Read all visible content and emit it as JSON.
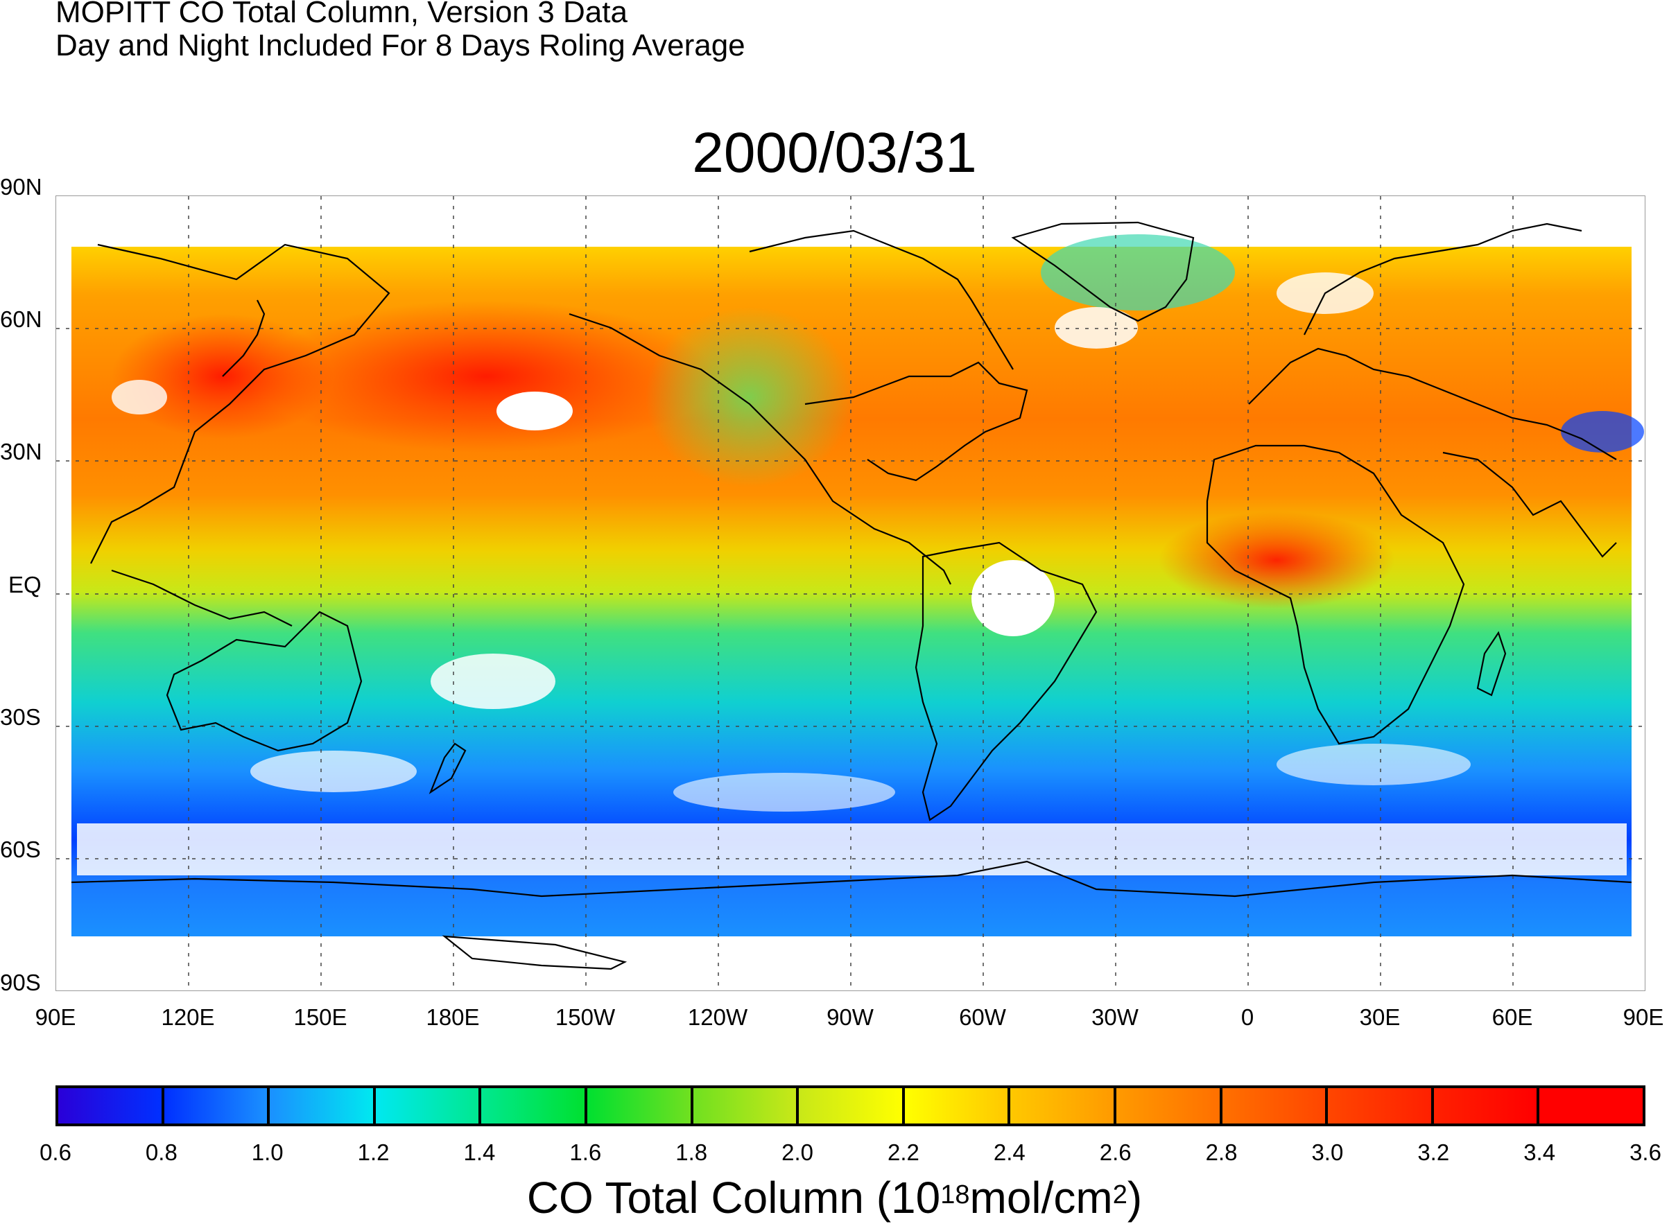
{
  "header": {
    "line1": "MOPITT CO Total Column, Version 3 Data",
    "line2": "Day and Night Included For 8 Days Roling Average"
  },
  "date": "2000/03/31",
  "lat_labels": [
    "90N",
    "60N",
    "30N",
    "EQ",
    "30S",
    "60S",
    "90S"
  ],
  "lon_labels": [
    "90E",
    "120E",
    "150E",
    "180E",
    "150W",
    "120W",
    "90W",
    "60W",
    "30W",
    "0",
    "30E",
    "60E",
    "90E"
  ],
  "colorbar": {
    "ticks": [
      "0.6",
      "0.8",
      "1.0",
      "1.2",
      "1.4",
      "1.6",
      "1.8",
      "2.0",
      "2.2",
      "2.4",
      "2.6",
      "2.8",
      "3.0",
      "3.2",
      "3.4",
      "3.6"
    ],
    "colors": [
      "#2a00d8",
      "#0030ff",
      "#1a90ff",
      "#00e8f0",
      "#00e890",
      "#00e030",
      "#70e020",
      "#c8e818",
      "#ffff00",
      "#ffc800",
      "#ff9a00",
      "#ff7000",
      "#ff4600",
      "#ff2000",
      "#ff0000"
    ],
    "title_main": "CO Total Column (10",
    "title_exp1": "18",
    "title_mid": "mol/cm",
    "title_exp2": "2",
    "title_end": ")"
  }
}
